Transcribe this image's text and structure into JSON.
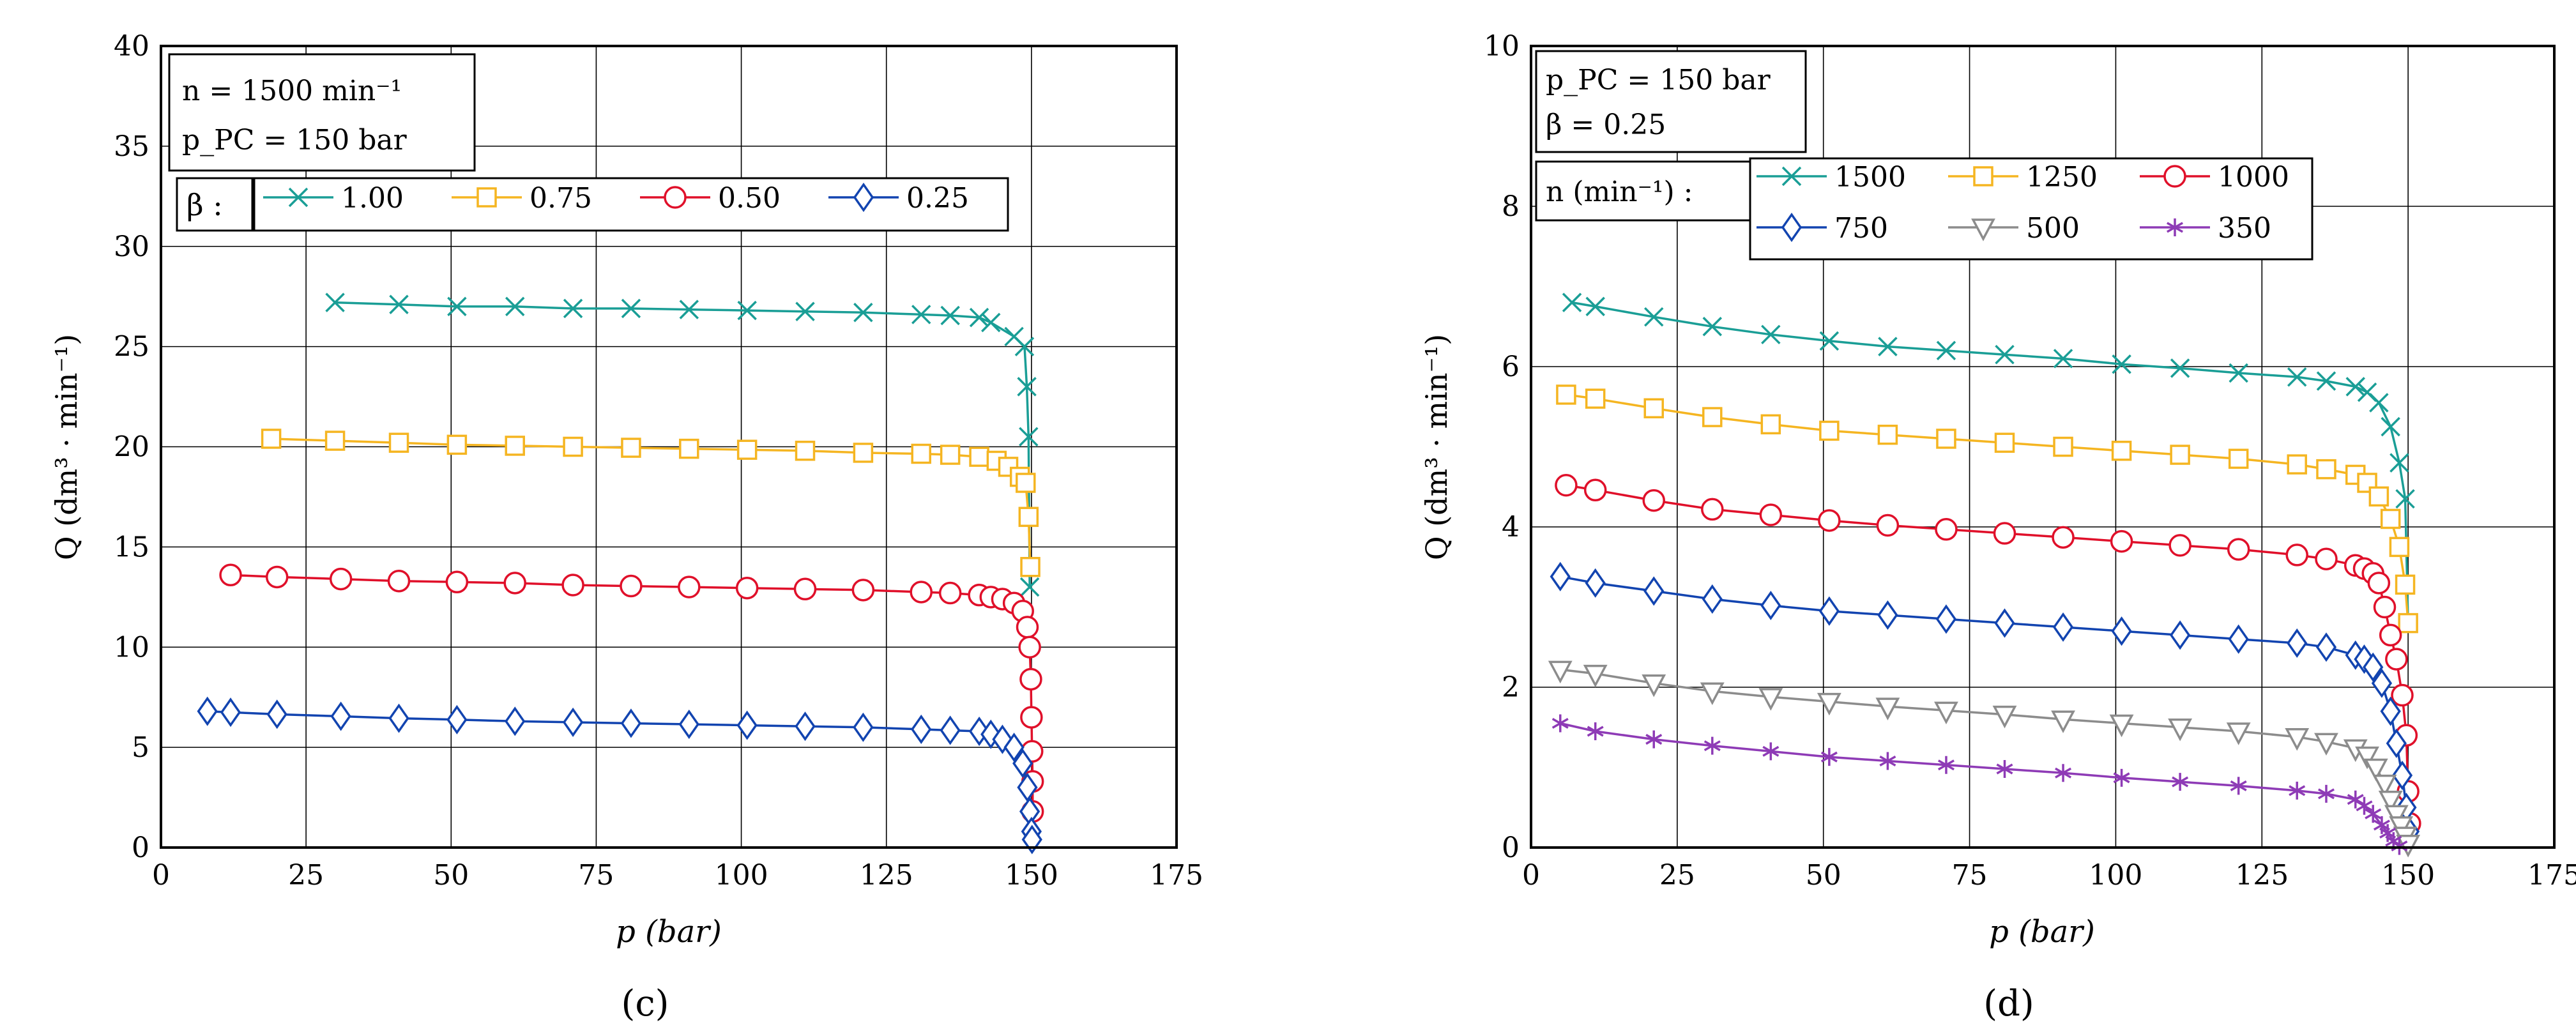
{
  "figure": {
    "panels": [
      "c",
      "d"
    ]
  },
  "chart_data": [
    {
      "type": "line",
      "panel_label": "(c)",
      "xlabel": "p (bar)",
      "ylabel": "Q (dm³ · min⁻¹)",
      "xlim": [
        0,
        175
      ],
      "ylim": [
        0,
        40
      ],
      "xticks": [
        0,
        25,
        50,
        75,
        100,
        125,
        150,
        175
      ],
      "yticks": [
        0,
        5,
        10,
        15,
        20,
        25,
        30,
        35,
        40
      ],
      "grid": true,
      "info_lines": [
        "n = 1500 min⁻¹",
        "p_PC = 150 bar"
      ],
      "legend_title": "β :",
      "legend_placement": "top-left",
      "series": [
        {
          "name": "1.00",
          "color": "#1a9e96",
          "marker": "x",
          "x": [
            30,
            41,
            51,
            61,
            71,
            81,
            91,
            101,
            111,
            121,
            131,
            136,
            141,
            143,
            147,
            148.8,
            149.2,
            149.5,
            149.7
          ],
          "y": [
            27.2,
            27.1,
            27.0,
            27.0,
            26.9,
            26.9,
            26.85,
            26.8,
            26.75,
            26.7,
            26.6,
            26.55,
            26.45,
            26.2,
            25.5,
            25.0,
            23.0,
            20.5,
            13.0
          ]
        },
        {
          "name": "0.75",
          "color": "#f5b521",
          "marker": "square",
          "x": [
            19,
            30,
            41,
            51,
            61,
            71,
            81,
            91,
            101,
            111,
            121,
            131,
            136,
            141,
            144,
            146,
            148,
            149,
            149.5,
            149.8
          ],
          "y": [
            20.4,
            20.3,
            20.2,
            20.1,
            20.05,
            20.0,
            19.95,
            19.9,
            19.85,
            19.8,
            19.7,
            19.65,
            19.6,
            19.5,
            19.3,
            19.0,
            18.5,
            18.2,
            16.5,
            14.0
          ]
        },
        {
          "name": "0.50",
          "color": "#e0102a",
          "marker": "circle",
          "x": [
            12,
            20,
            31,
            41,
            51,
            61,
            71,
            81,
            91,
            101,
            111,
            121,
            131,
            136,
            141,
            143,
            145,
            147,
            148.5,
            149.3,
            149.7,
            149.9,
            150,
            150.1,
            150.2,
            150.2
          ],
          "y": [
            13.6,
            13.5,
            13.4,
            13.3,
            13.25,
            13.2,
            13.1,
            13.05,
            13.0,
            12.95,
            12.9,
            12.85,
            12.75,
            12.7,
            12.6,
            12.5,
            12.4,
            12.2,
            11.8,
            11.0,
            10.0,
            8.4,
            6.5,
            4.8,
            3.3,
            1.8
          ]
        },
        {
          "name": "0.25",
          "color": "#1244b0",
          "marker": "diamond",
          "x": [
            8,
            12,
            20,
            31,
            41,
            51,
            61,
            71,
            81,
            91,
            101,
            111,
            121,
            131,
            136,
            141,
            143,
            145,
            147,
            148.5,
            149.3,
            149.7,
            150,
            150.1
          ],
          "y": [
            6.8,
            6.75,
            6.65,
            6.55,
            6.45,
            6.38,
            6.3,
            6.25,
            6.2,
            6.15,
            6.1,
            6.05,
            6.0,
            5.9,
            5.85,
            5.8,
            5.65,
            5.4,
            5.0,
            4.2,
            3.0,
            1.8,
            0.8,
            0.4
          ]
        }
      ]
    },
    {
      "type": "line",
      "panel_label": "(d)",
      "xlabel": "p (bar)",
      "ylabel": "Q (dm³ · min⁻¹)",
      "xlim": [
        0,
        175
      ],
      "ylim": [
        0,
        10
      ],
      "xticks": [
        0,
        25,
        50,
        75,
        100,
        125,
        150,
        175
      ],
      "yticks": [
        0,
        2,
        4,
        6,
        8,
        10
      ],
      "grid": true,
      "info_lines": [
        "p_PC = 150 bar",
        "β = 0.25"
      ],
      "legend_title": "n (min⁻¹) :",
      "legend_placement": "top-left",
      "series": [
        {
          "name": "1500",
          "color": "#1a9e96",
          "marker": "x",
          "x": [
            7,
            11,
            21,
            31,
            41,
            51,
            61,
            71,
            81,
            91,
            101,
            111,
            121,
            131,
            136,
            141,
            143,
            145,
            147,
            148.5,
            149.5,
            150
          ],
          "y": [
            6.8,
            6.75,
            6.62,
            6.5,
            6.4,
            6.32,
            6.25,
            6.2,
            6.15,
            6.1,
            6.03,
            5.98,
            5.92,
            5.87,
            5.82,
            5.75,
            5.68,
            5.55,
            5.25,
            4.8,
            4.35,
            2.8
          ]
        },
        {
          "name": "1250",
          "color": "#f5b521",
          "marker": "square",
          "x": [
            6,
            11,
            21,
            31,
            41,
            51,
            61,
            71,
            81,
            91,
            101,
            111,
            121,
            131,
            136,
            141,
            143,
            145,
            147,
            148.5,
            149.5,
            150
          ],
          "y": [
            5.65,
            5.6,
            5.48,
            5.37,
            5.28,
            5.2,
            5.15,
            5.1,
            5.05,
            5.0,
            4.95,
            4.9,
            4.85,
            4.78,
            4.72,
            4.65,
            4.55,
            4.38,
            4.1,
            3.75,
            3.28,
            2.8
          ]
        },
        {
          "name": "1000",
          "color": "#e0102a",
          "marker": "circle",
          "x": [
            6,
            11,
            21,
            31,
            41,
            51,
            61,
            71,
            81,
            91,
            101,
            111,
            121,
            131,
            136,
            141,
            142.5,
            144,
            145,
            146,
            147,
            148,
            149,
            149.7,
            150,
            150.3
          ],
          "y": [
            4.52,
            4.46,
            4.33,
            4.22,
            4.15,
            4.08,
            4.02,
            3.97,
            3.92,
            3.87,
            3.82,
            3.77,
            3.72,
            3.65,
            3.6,
            3.52,
            3.48,
            3.42,
            3.3,
            3.0,
            2.65,
            2.35,
            1.9,
            1.4,
            0.7,
            0.3
          ]
        },
        {
          "name": "750",
          "color": "#1244b0",
          "marker": "diamond",
          "x": [
            5,
            11,
            21,
            31,
            41,
            51,
            61,
            71,
            81,
            91,
            101,
            111,
            121,
            131,
            136,
            141,
            142.5,
            144,
            145.5,
            147,
            148,
            149,
            149.7,
            150.2
          ],
          "y": [
            3.38,
            3.3,
            3.2,
            3.1,
            3.02,
            2.95,
            2.9,
            2.85,
            2.8,
            2.75,
            2.7,
            2.65,
            2.6,
            2.55,
            2.5,
            2.4,
            2.35,
            2.25,
            2.05,
            1.7,
            1.3,
            0.9,
            0.5,
            0.2
          ]
        },
        {
          "name": "500",
          "color": "#8c8c8c",
          "marker": "triangle-down",
          "x": [
            5,
            11,
            21,
            31,
            41,
            51,
            61,
            71,
            81,
            91,
            101,
            111,
            121,
            131,
            136,
            141,
            143,
            144.5,
            146,
            147,
            148,
            148.8,
            149.5,
            150
          ],
          "y": [
            2.22,
            2.17,
            2.05,
            1.95,
            1.88,
            1.82,
            1.76,
            1.71,
            1.66,
            1.6,
            1.55,
            1.5,
            1.45,
            1.38,
            1.32,
            1.24,
            1.15,
            1.0,
            0.8,
            0.6,
            0.42,
            0.28,
            0.15,
            0.05
          ]
        },
        {
          "name": "350",
          "color": "#8e3bb6",
          "marker": "asterisk",
          "x": [
            5,
            11,
            21,
            31,
            41,
            51,
            61,
            71,
            81,
            91,
            101,
            111,
            121,
            131,
            136,
            141,
            142.5,
            144,
            145.5,
            146.5,
            147.5,
            148.5
          ],
          "y": [
            1.55,
            1.45,
            1.35,
            1.27,
            1.2,
            1.13,
            1.08,
            1.03,
            0.98,
            0.93,
            0.87,
            0.82,
            0.77,
            0.71,
            0.67,
            0.6,
            0.52,
            0.42,
            0.28,
            0.18,
            0.08,
            0.02
          ]
        }
      ]
    }
  ]
}
